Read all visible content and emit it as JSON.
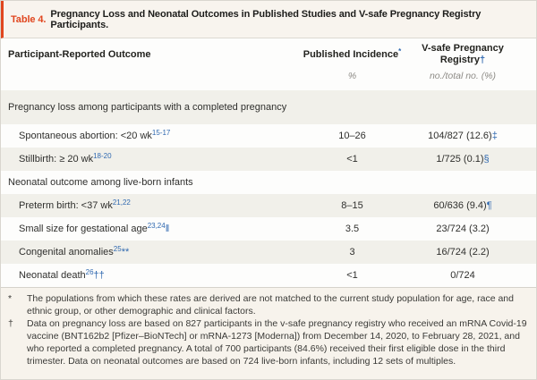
{
  "colors": {
    "accent_red": "#e0461f",
    "accent_blue": "#3069b0",
    "band_beige": "#f8f4ee",
    "stripe_gray": "#f1f0ea"
  },
  "title": {
    "label": "Table 4.",
    "text": "Pregnancy Loss and Neonatal Outcomes in Published Studies and V-safe Pregnancy Registry Participants."
  },
  "header": {
    "outcome": "Participant-Reported Outcome",
    "published": "Published Incidence",
    "published_marker": "*",
    "vsafe": "V-safe Pregnancy Registry",
    "vsafe_marker": "†",
    "published_unit": "%",
    "vsafe_unit": "no./total no. (%)"
  },
  "rows": [
    {
      "kind": "section",
      "label": "Pregnancy loss among participants with a completed pregnancy"
    },
    {
      "kind": "data",
      "label": "Spontaneous abortion: <20 wk",
      "refs": "15-17",
      "label_marker": "",
      "published": "10–26",
      "vsafe": "104/827 (12.6)",
      "vsafe_marker": "‡"
    },
    {
      "kind": "data",
      "label": "Stillbirth: ≥ 20 wk",
      "refs": "18-20",
      "label_marker": "",
      "published": "<1",
      "vsafe": "1/725 (0.1)",
      "vsafe_marker": "§"
    },
    {
      "kind": "section",
      "label": "Neonatal outcome among live-born infants"
    },
    {
      "kind": "data",
      "label": "Preterm birth: <37 wk",
      "refs": "21,22",
      "label_marker": "",
      "published": "8–15",
      "vsafe": "60/636 (9.4)",
      "vsafe_marker": "¶"
    },
    {
      "kind": "data",
      "label": "Small size for gestational age",
      "refs": "23,24",
      "label_marker": "‖",
      "published": "3.5",
      "vsafe": "23/724 (3.2)",
      "vsafe_marker": ""
    },
    {
      "kind": "data",
      "label": "Congenital anomalies",
      "refs": "25",
      "label_marker": "**",
      "published": "3",
      "vsafe": "16/724 (2.2)",
      "vsafe_marker": ""
    },
    {
      "kind": "data",
      "label": "Neonatal death",
      "refs": "26",
      "label_marker": "††",
      "published": "<1",
      "vsafe": "0/724",
      "vsafe_marker": ""
    }
  ],
  "footnotes": [
    {
      "marker": "*",
      "text": "The populations from which these rates are derived are not matched to the current study population for age, race and ethnic group, or other demographic and clinical factors."
    },
    {
      "marker": "†",
      "text": "Data on pregnancy loss are based on 827 participants in the v-safe pregnancy registry who received an mRNA Covid-19 vaccine (BNT162b2 [Pfizer–BioNTech] or mRNA-1273 [Moderna]) from December 14, 2020, to February 28, 2021, and who reported a completed pregnancy. A total of 700 participants (84.6%) received their first eligible dose in the third trimester. Data on neonatal outcomes are based on 724 live-born infants, including 12 sets of multiples."
    }
  ]
}
